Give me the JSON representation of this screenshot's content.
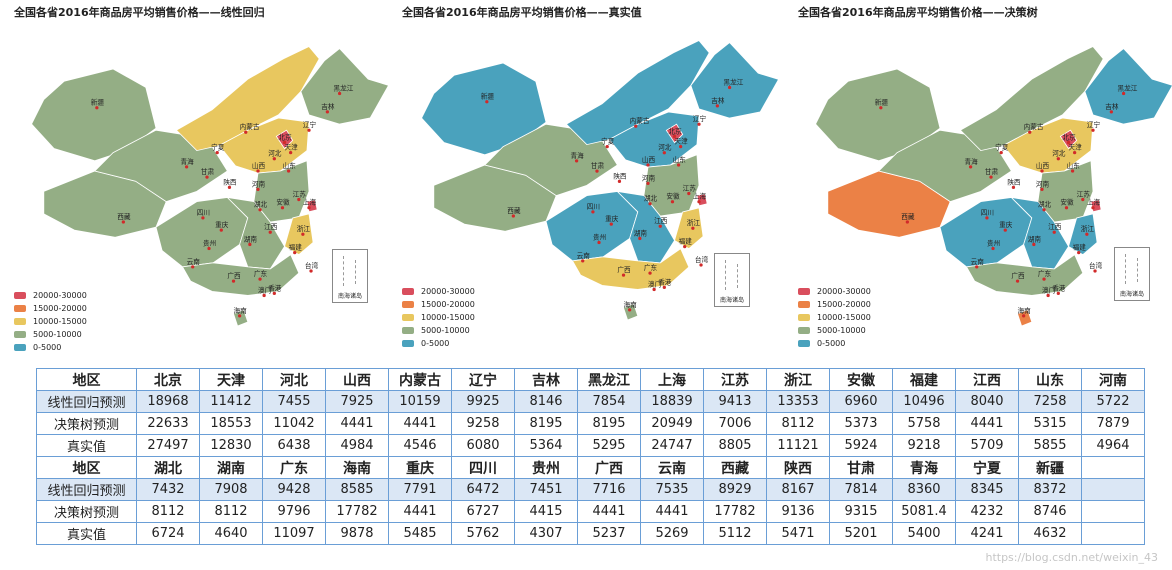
{
  "colors": {
    "r20000_30000": "#d94e5d",
    "r15000_20000": "#eb8146",
    "r10000_15000": "#e8c75f",
    "r5000_10000": "#94ae85",
    "r0_5000": "#4aa2bd",
    "table_border": "#6a9ed6",
    "row_highlight": "#dbe7f5"
  },
  "panels": [
    {
      "title": "全国各省2016年商品房平均销售价格——线性回归",
      "island_label": "南海诸岛",
      "legend": [
        "20000-30000",
        "15000-20000",
        "10000-15000",
        "5000-10000",
        "0-5000"
      ]
    },
    {
      "title": "全国各省2016年商品房平均销售价格——真实值",
      "island_label": "南海诸岛",
      "legend": [
        "20000-30000",
        "15000-20000",
        "10000-15000",
        "5000-10000",
        "0-5000"
      ]
    },
    {
      "title": "全国各省2016年商品房平均销售价格——决策树",
      "island_label": "南海诸岛",
      "legend": [
        "20000-30000",
        "15000-20000",
        "10000-15000",
        "5000-10000",
        "0-5000"
      ]
    }
  ],
  "map_labels": [
    "新疆",
    "内蒙古",
    "黑龙江",
    "吉林",
    "辽宁",
    "北京",
    "天津",
    "宁夏",
    "河北",
    "山西",
    "青海",
    "甘肃",
    "山东",
    "陕西",
    "河南",
    "西藏",
    "四川",
    "湖北",
    "安徽",
    "江苏",
    "上海",
    "重庆",
    "贵州",
    "湖南",
    "江西",
    "浙江",
    "福建",
    "云南",
    "广西",
    "广东",
    "台湾",
    "香港",
    "澳门",
    "海南"
  ],
  "table": {
    "row_label_header": "地区",
    "row_labels": [
      "线性回归预测",
      "决策树预测",
      "真实值"
    ],
    "block1_regions": [
      "北京",
      "天津",
      "河北",
      "山西",
      "内蒙古",
      "辽宁",
      "吉林",
      "黑龙江",
      "上海",
      "江苏",
      "浙江",
      "安徽",
      "福建",
      "江西",
      "山东",
      "河南"
    ],
    "block1_rows": [
      [
        "18968",
        "11412",
        "7455",
        "7925",
        "10159",
        "9925",
        "8146",
        "7854",
        "18839",
        "9413",
        "13353",
        "6960",
        "10496",
        "8040",
        "7258",
        "5722"
      ],
      [
        "22633",
        "18553",
        "11042",
        "4441",
        "4441",
        "9258",
        "8195",
        "8195",
        "20949",
        "7006",
        "8112",
        "5373",
        "5758",
        "4441",
        "5315",
        "7879"
      ],
      [
        "27497",
        "12830",
        "6438",
        "4984",
        "4546",
        "6080",
        "5364",
        "5295",
        "24747",
        "8805",
        "11121",
        "5924",
        "9218",
        "5709",
        "5855",
        "4964"
      ]
    ],
    "block2_regions": [
      "湖北",
      "湖南",
      "广东",
      "海南",
      "重庆",
      "四川",
      "贵州",
      "广西",
      "云南",
      "西藏",
      "陕西",
      "甘肃",
      "青海",
      "宁夏",
      "新疆",
      ""
    ],
    "block2_rows": [
      [
        "7432",
        "7908",
        "9428",
        "8585",
        "7791",
        "6472",
        "7451",
        "7716",
        "7535",
        "8929",
        "8167",
        "7814",
        "8360",
        "8345",
        "8372",
        ""
      ],
      [
        "8112",
        "8112",
        "9796",
        "17782",
        "4441",
        "6727",
        "4415",
        "4441",
        "4441",
        "17782",
        "9136",
        "9315",
        "5081.4",
        "4232",
        "8746",
        ""
      ],
      [
        "6724",
        "4640",
        "11097",
        "9878",
        "5485",
        "5762",
        "4307",
        "5237",
        "5269",
        "5112",
        "5471",
        "5201",
        "5400",
        "4241",
        "4632",
        ""
      ]
    ]
  },
  "watermark": "https://blog.csdn.net/weixin_43"
}
